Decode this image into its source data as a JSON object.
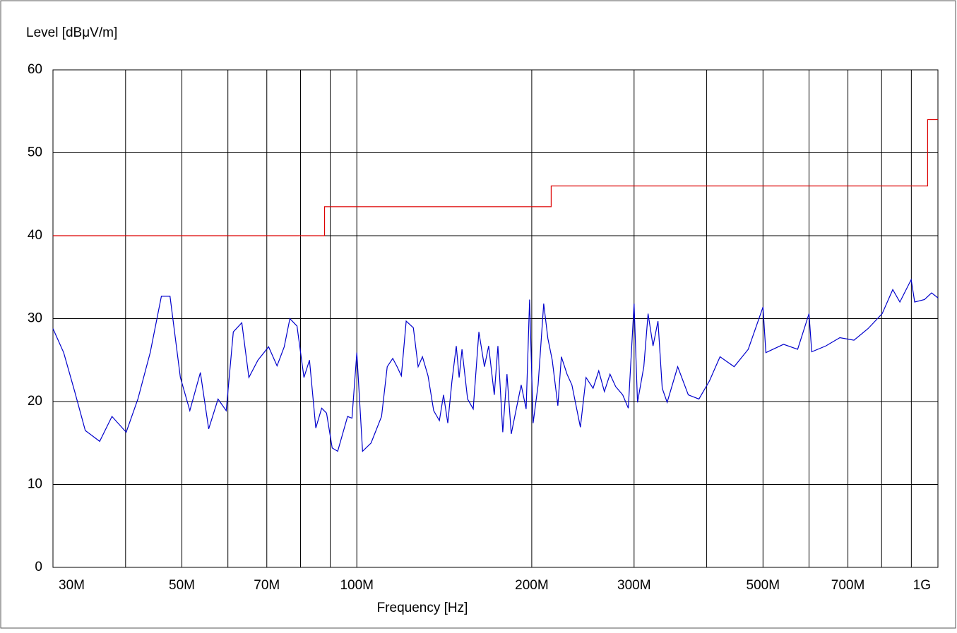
{
  "chart_data": {
    "type": "line",
    "y_label": "Level [dBμV/m]",
    "x_label": "Frequency [Hz]",
    "xscale": "log",
    "grid": true,
    "xlim": [
      30000000,
      1000000000
    ],
    "ylim": [
      0,
      60
    ],
    "yticks": [
      0,
      10,
      20,
      30,
      40,
      50,
      60
    ],
    "xticks": [
      {
        "value": 30000000,
        "label": "30M"
      },
      {
        "value": 50000000,
        "label": "50M"
      },
      {
        "value": 70000000,
        "label": "70M"
      },
      {
        "value": 100000000,
        "label": "100M"
      },
      {
        "value": 200000000,
        "label": "200M"
      },
      {
        "value": 300000000,
        "label": "300M"
      },
      {
        "value": 500000000,
        "label": "500M"
      },
      {
        "value": 700000000,
        "label": "700M"
      },
      {
        "value": 1000000000,
        "label": "1G"
      }
    ],
    "xminor": [
      40000000,
      60000000,
      80000000,
      90000000,
      400000000,
      600000000,
      800000000,
      900000000
    ],
    "series": [
      {
        "color": "#0000cc",
        "x": [
          30000000,
          31300000,
          32700000,
          34100000,
          36100000,
          37900000,
          40100000,
          42000000,
          44100000,
          46100000,
          47700000,
          49700000,
          51600000,
          53800000,
          55600000,
          57700000,
          59600000,
          61300000,
          63400000,
          65200000,
          67600000,
          70500000,
          72900000,
          75000000,
          76700000,
          78900000,
          81100000,
          82900000,
          85000000,
          87000000,
          88700000,
          90700000,
          92700000,
          96400000,
          98100000,
          100000000,
          102300000,
          105800000,
          110300000,
          112800000,
          115300000,
          117300000,
          119300000,
          121600000,
          125100000,
          127500000,
          129700000,
          132600000,
          135600000,
          138700000,
          141000000,
          143400000,
          145800000,
          148300000,
          150000000,
          151700000,
          155100000,
          158600000,
          162200000,
          165800000,
          168600000,
          172400000,
          174900000,
          178300000,
          181300000,
          184400000,
          188600000,
          191800000,
          195600000,
          198300000,
          201100000,
          205100000,
          209700000,
          213200000,
          216900000,
          221800000,
          224900000,
          230000000,
          234500000,
          242500000,
          248000000,
          255000000,
          260800000,
          266700000,
          272700000,
          278900000,
          286800000,
          293200000,
          300000000,
          304100000,
          311800000,
          317100000,
          323400000,
          329800000,
          335400000,
          342000000,
          356600000,
          371900000,
          387900000,
          404500000,
          421700000,
          446000000,
          471600000,
          500000000,
          505700000,
          542400000,
          573600000,
          600000000,
          606500000,
          641200000,
          678000000,
          717000000,
          758200000,
          801800000,
          836100000,
          860000000,
          899400000,
          912000000,
          948200000,
          975200000,
          1000000000
        ],
        "values": [
          28.8,
          25.9,
          21.2,
          16.5,
          15.2,
          18.2,
          16.3,
          20.3,
          25.9,
          32.7,
          32.7,
          22.9,
          18.9,
          23.5,
          16.7,
          20.3,
          18.9,
          28.4,
          29.5,
          22.9,
          25.0,
          26.6,
          24.3,
          26.6,
          30.0,
          29.1,
          22.9,
          25.0,
          16.8,
          19.2,
          18.6,
          14.4,
          14.0,
          18.2,
          18.0,
          25.9,
          14.0,
          15.0,
          18.2,
          24.2,
          25.2,
          24.2,
          23.1,
          29.7,
          28.9,
          24.2,
          25.4,
          23.1,
          18.9,
          17.7,
          20.8,
          17.4,
          22.5,
          26.7,
          22.9,
          26.3,
          20.3,
          19.1,
          28.4,
          24.2,
          26.7,
          20.8,
          26.7,
          16.3,
          23.3,
          16.1,
          19.5,
          22.0,
          19.1,
          32.3,
          17.4,
          22.0,
          31.8,
          27.6,
          25.0,
          19.5,
          25.4,
          23.3,
          22.0,
          16.9,
          22.9,
          21.6,
          23.7,
          21.2,
          23.3,
          21.8,
          20.8,
          19.2,
          31.8,
          19.9,
          24.2,
          30.6,
          26.7,
          29.7,
          21.6,
          19.9,
          24.2,
          20.8,
          20.3,
          22.5,
          25.4,
          24.2,
          26.3,
          31.4,
          25.9,
          26.9,
          26.3,
          30.6,
          26.0,
          26.7,
          27.7,
          27.4,
          28.8,
          30.6,
          33.5,
          32.0,
          34.7,
          32.0,
          32.3,
          33.1,
          32.5
        ]
      },
      {
        "color": "#dd0000",
        "x": [
          30000000,
          88000000,
          88000000,
          216000000,
          216000000,
          960000000,
          960000000,
          1000000000
        ],
        "values": [
          40,
          40,
          43.5,
          43.5,
          46,
          46,
          54,
          54
        ]
      }
    ]
  }
}
